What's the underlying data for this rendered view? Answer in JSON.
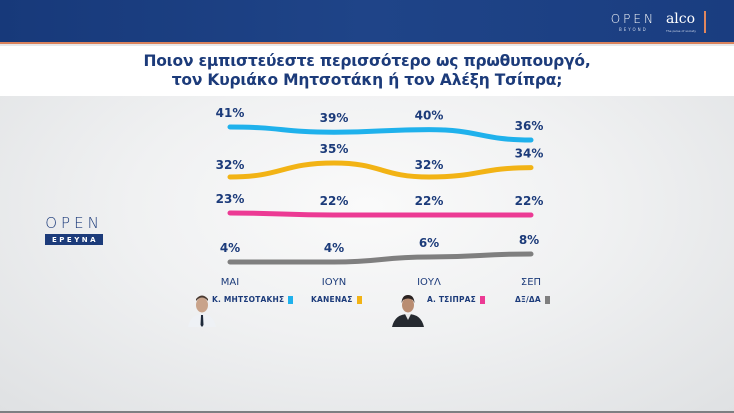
{
  "header": {
    "brand_open": "OPEN",
    "brand_open_sub": "BEYOND",
    "brand_alco": "alco",
    "brand_alco_sub": "The pulse of society"
  },
  "title": {
    "line1": "Ποιον εμπιστεύεστε περισσότερο ως πρωθυπουργό,",
    "line2": "τον Κυριάκο Μητσοτάκη ή τον Αλέξη Τσίπρα;"
  },
  "side_logo": {
    "word": "OPEN",
    "sub": "ΕΡΕΥΝΑ"
  },
  "legend": [
    {
      "label": "Κ. ΜΗΤΣΟΤΑΚΗΣ",
      "color": "#1fb1ec",
      "has_photo": true
    },
    {
      "label": "ΚΑΝΕΝΑΣ",
      "color": "#f2b315",
      "has_photo": false
    },
    {
      "label": "Α. ΤΣΙΠΡΑΣ",
      "color": "#ec3a94",
      "has_photo": true
    },
    {
      "label": "ΔΞ/ΔΑ",
      "color": "#7f7f7f",
      "has_photo": false
    }
  ],
  "chart_data": {
    "type": "line",
    "title": "Ποιον εμπιστεύεστε περισσότερο ως πρωθυπουργό, τον Κυριάκο Μητσοτάκη ή τον Αλέξη Τσίπρα;",
    "categories": [
      "ΜΑΙ",
      "ΙΟΥΝ",
      "ΙΟΥΛ",
      "ΣΕΠ"
    ],
    "series": [
      {
        "name": "Κ. ΜΗΤΣΟΤΑΚΗΣ",
        "color": "#1fb1ec",
        "values": [
          41,
          39,
          40,
          36
        ],
        "labels": [
          "41%",
          "39%",
          "40%",
          "36%"
        ]
      },
      {
        "name": "ΚΑΝΕΝΑΣ",
        "color": "#f2b315",
        "values": [
          32,
          35,
          32,
          34
        ],
        "labels": [
          "32%",
          "35%",
          "32%",
          "34%"
        ]
      },
      {
        "name": "Α. ΤΣΙΠΡΑΣ",
        "color": "#ec3a94",
        "values": [
          23,
          22,
          22,
          22
        ],
        "labels": [
          "23%",
          "22%",
          "22%",
          "22%"
        ]
      },
      {
        "name": "ΔΞ/ΔΑ",
        "color": "#7f7f7f",
        "values": [
          4,
          4,
          6,
          8
        ],
        "labels": [
          "4%",
          "4%",
          "6%",
          "8%"
        ]
      }
    ],
    "xlabel": "",
    "ylabel": "",
    "grid": false,
    "legend_position": "bottom",
    "unit": "%"
  }
}
